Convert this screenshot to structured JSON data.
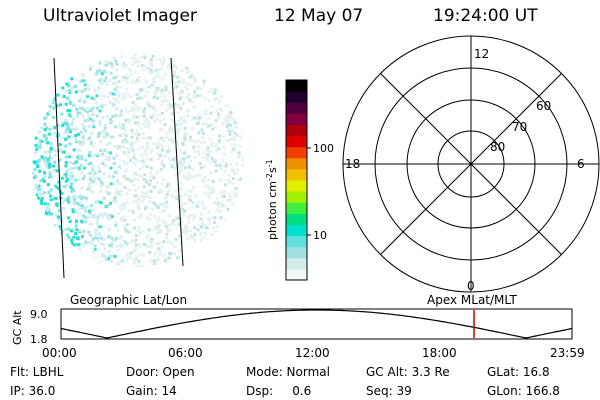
{
  "header": {
    "title": "Ultraviolet Imager",
    "date": "12 May 07",
    "time": "19:24:00 UT"
  },
  "colorbar": {
    "label_text": "photon cm",
    "label_exp1": "-2",
    "label_mid": "s",
    "label_exp2": "-1",
    "ticks": [
      "100",
      "10"
    ],
    "colors": [
      "#f0f8f8",
      "#d0ecec",
      "#a0e0e0",
      "#60e0e0",
      "#00e0d0",
      "#00e080",
      "#40f040",
      "#a0f000",
      "#e0f000",
      "#f0c000",
      "#f09000",
      "#f04000",
      "#e00000",
      "#b00010",
      "#800040",
      "#500040",
      "#200030",
      "#000000"
    ]
  },
  "left_panel": {
    "label": "Geographic Lat/Lon"
  },
  "right_panel": {
    "label": "Apex MLat/MLT",
    "lat_labels": [
      "60",
      "70",
      "80"
    ],
    "mlt_labels": {
      "top": "12",
      "left": "18",
      "right": "6",
      "bottom": "0"
    }
  },
  "altitude_plot": {
    "ylabel": "GC Alt",
    "y_ticks": [
      "9.0",
      "1.8"
    ],
    "x_ticks": [
      "00:00",
      "06:00",
      "12:00",
      "18:00",
      "23:59"
    ],
    "marker_fraction": 0.8083,
    "marker_color": "#cc0000"
  },
  "info": {
    "filter": "Flt: LBHL",
    "door": "Door: Open",
    "mode": "Mode: Normal",
    "gc_alt": "GC Alt: 3.3 Re",
    "glat": "GLat:  16.8",
    "ip": "IP: 36.0",
    "gain": "Gain: 14",
    "dsp": "Dsp:     0.6",
    "seq": "Seq: 39",
    "glon": "GLon: 166.8"
  }
}
